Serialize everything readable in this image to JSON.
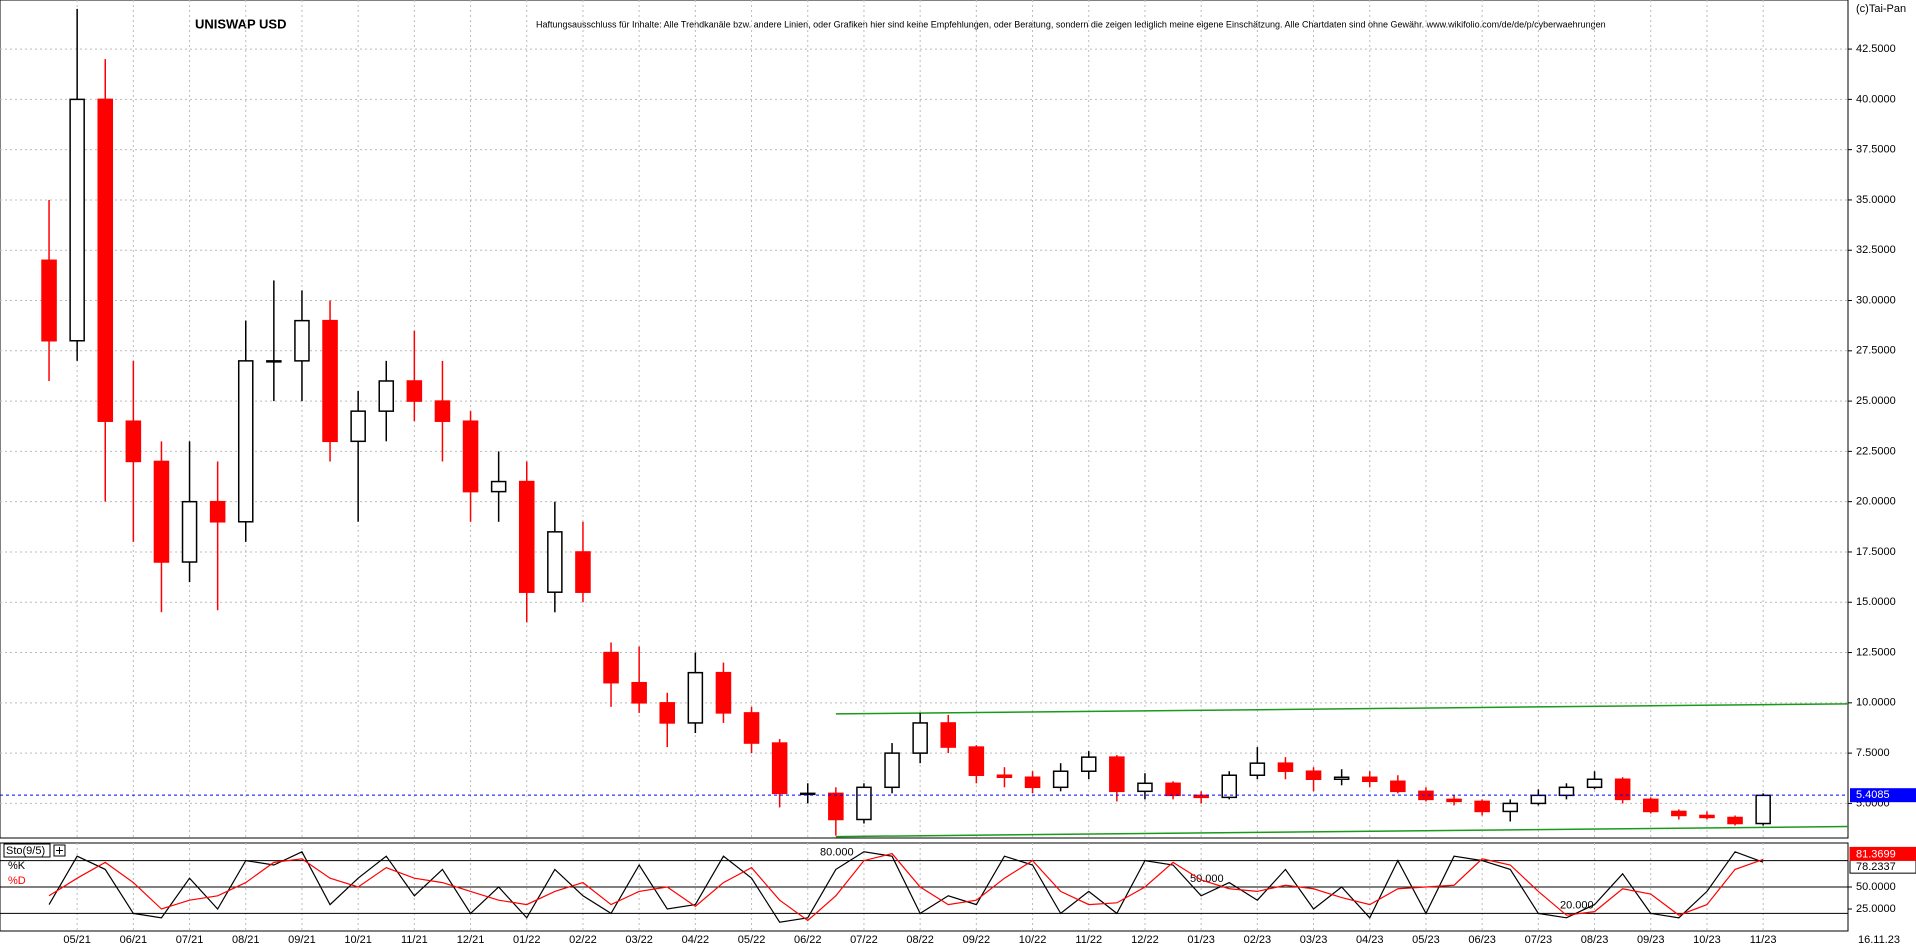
{
  "chart_data": [
    {
      "type": "candlestick",
      "title": "UNISWAP USD",
      "subtitle": "Haftungsausschluss für Inhalte: Alle Trendkanäle bzw. andere Linien, oder Grafiken hier sind keine Empfehlungen, oder Beratung, sondern die zeigen lediglich meine eigene Einschätzung. Alle Chartdaten sind ohne Gewähr.  www.wikifolio.com/de/de/p/cyberwaehrungen",
      "copyright": "(c)Tai-Pan",
      "date_label": "16.11.23",
      "categories": [
        null,
        "05/21",
        null,
        "06/21",
        null,
        "07/21",
        null,
        "08/21",
        null,
        "09/21",
        null,
        "10/21",
        null,
        "11/21",
        null,
        "12/21",
        null,
        "01/22",
        null,
        "02/22",
        null,
        "03/22",
        null,
        "04/22",
        null,
        "05/22",
        null,
        "06/22",
        null,
        "07/22",
        null,
        "08/22",
        null,
        "09/22",
        null,
        "10/22",
        null,
        "11/22",
        null,
        "12/22",
        null,
        "01/23",
        null,
        "02/23",
        null,
        "03/23",
        null,
        "04/23",
        null,
        "05/23",
        null,
        "06/23",
        null,
        "07/23",
        null,
        "08/23",
        null,
        "09/23",
        null,
        "10/23",
        null,
        "11/23"
      ],
      "open": [
        32,
        28,
        40,
        24,
        22,
        17,
        20,
        19,
        27,
        27,
        29,
        23,
        24.5,
        26,
        25,
        24,
        20.5,
        21,
        15.5,
        17.5,
        12.5,
        11,
        10,
        9,
        11.5,
        9.5,
        8,
        5.5,
        5.5,
        4.2,
        5.8,
        7.5,
        9,
        7.8,
        6.4,
        6.3,
        5.8,
        6.6,
        7.3,
        5.6,
        6,
        5.4,
        5.3,
        6.4,
        7,
        6.6,
        6.2,
        6.3,
        6.1,
        5.6,
        5.2,
        5.1,
        4.6,
        5,
        5.4,
        5.8,
        6.2,
        5.2,
        4.6,
        4.4,
        4.3,
        4
      ],
      "high": [
        35,
        44.5,
        42,
        27,
        23,
        23,
        22,
        29,
        31,
        30.5,
        30,
        25.5,
        27,
        28.5,
        27,
        24.5,
        22.5,
        22,
        20,
        19,
        13,
        12.8,
        10.5,
        12.5,
        12,
        9.8,
        8.2,
        6,
        5.8,
        6,
        8,
        9.5,
        9.4,
        7.9,
        6.8,
        6.6,
        7,
        7.6,
        7.4,
        6.5,
        6.1,
        5.6,
        6.6,
        7.8,
        7.3,
        6.8,
        6.7,
        6.6,
        6.4,
        5.8,
        5.4,
        5.2,
        5.2,
        5.7,
        6,
        6.6,
        6.3,
        5.3,
        4.7,
        4.6,
        4.4,
        5.5
      ],
      "low": [
        26,
        27,
        20,
        18,
        14.5,
        16,
        14.6,
        18,
        25,
        25,
        22,
        19,
        23,
        24,
        22,
        19,
        19,
        14,
        14.5,
        15,
        9.8,
        9.5,
        7.8,
        8.5,
        9,
        7.5,
        4.8,
        5,
        3.4,
        4,
        5.5,
        7,
        7.5,
        6,
        5.8,
        5.5,
        5.6,
        6.2,
        5.1,
        5.2,
        5.2,
        5,
        5.2,
        6.2,
        6.2,
        5.6,
        5.9,
        5.8,
        5.5,
        5.1,
        4.9,
        4.4,
        4.1,
        4.9,
        5.2,
        5.7,
        5,
        4.5,
        4.2,
        4.2,
        3.9,
        3.9
      ],
      "close": [
        28,
        40,
        24,
        22,
        17,
        20,
        19,
        27,
        27,
        29,
        23,
        24.5,
        26,
        25,
        24,
        20.5,
        21,
        15.5,
        18.5,
        15.5,
        11,
        10,
        9,
        11.5,
        9.5,
        8,
        5.5,
        5.5,
        4.2,
        5.8,
        7.5,
        9,
        7.8,
        6.4,
        6.3,
        5.8,
        6.6,
        7.3,
        5.6,
        6,
        5.4,
        5.3,
        6.4,
        7,
        6.6,
        6.2,
        6.3,
        6.1,
        5.6,
        5.2,
        5.1,
        4.6,
        5,
        5.4,
        5.8,
        6.2,
        5.2,
        4.6,
        4.4,
        4.3,
        4,
        5.4
      ],
      "up_color": "#000000",
      "down_color": "#ff0000",
      "ylim": [
        3.28,
        44.94
      ],
      "yticks": [
        {
          "value": 5,
          "label": "5.0000"
        },
        {
          "value": 7.5,
          "label": "7.5000"
        },
        {
          "value": 10,
          "label": "10.0000"
        },
        {
          "value": 12.5,
          "label": "12.5000"
        },
        {
          "value": 15,
          "label": "15.0000"
        },
        {
          "value": 17.5,
          "label": "17.5000"
        },
        {
          "value": 20,
          "label": "20.0000"
        },
        {
          "value": 22.5,
          "label": "22.5000"
        },
        {
          "value": 25,
          "label": "25.0000"
        },
        {
          "value": 27.5,
          "label": "27.5000"
        },
        {
          "value": 30,
          "label": "30.0000"
        },
        {
          "value": 32.5,
          "label": "32.5000"
        },
        {
          "value": 35,
          "label": "35.0000"
        },
        {
          "value": 37.5,
          "label": "37.5000"
        },
        {
          "value": 40,
          "label": "40.0000"
        },
        {
          "value": 42.5,
          "label": "42.5000"
        }
      ],
      "grid": true,
      "last_price": 5.4085,
      "last_price_color": "#0000ff",
      "trendlines": [
        {
          "color": "#1a9a1a",
          "values": [
            9.45,
            9.95
          ]
        },
        {
          "color": "#1a9a1a",
          "values": [
            3.35,
            3.85
          ]
        }
      ]
    },
    {
      "type": "line",
      "title": "Sto(9/5)",
      "categories": [
        null,
        "05/21",
        null,
        "06/21",
        null,
        "07/21",
        null,
        "08/21",
        null,
        "09/21",
        null,
        "10/21",
        null,
        "11/21",
        null,
        "12/21",
        null,
        "01/22",
        null,
        "02/22",
        null,
        "03/22",
        null,
        "04/22",
        null,
        "05/22",
        null,
        "06/22",
        null,
        "07/22",
        null,
        "08/22",
        null,
        "09/22",
        null,
        "10/22",
        null,
        "11/22",
        null,
        "12/22",
        null,
        "01/23",
        null,
        "02/23",
        null,
        "03/23",
        null,
        "04/23",
        null,
        "05/23",
        null,
        "06/23",
        null,
        "07/23",
        null,
        "08/23",
        null,
        "09/23",
        null,
        "10/23",
        null,
        "11/23"
      ],
      "series": [
        {
          "name": "%K",
          "color": "#000000",
          "values": [
            30,
            85,
            70,
            20,
            15,
            60,
            25,
            80,
            75,
            90,
            30,
            60,
            85,
            40,
            70,
            20,
            50,
            15,
            70,
            40,
            20,
            75,
            25,
            30,
            85,
            60,
            10,
            15,
            70,
            90,
            85,
            20,
            40,
            30,
            85,
            75,
            20,
            45,
            20,
            80,
            75,
            40,
            55,
            35,
            70,
            25,
            50,
            15,
            80,
            20,
            85,
            80,
            70,
            20,
            15,
            30,
            65,
            20,
            15,
            45,
            90,
            78.2337
          ]
        },
        {
          "name": "%D",
          "color": "#ff0000",
          "values": [
            40,
            60,
            78,
            55,
            25,
            35,
            40,
            55,
            78,
            82,
            60,
            50,
            72,
            60,
            55,
            45,
            35,
            30,
            45,
            55,
            30,
            45,
            50,
            28,
            55,
            72,
            35,
            12,
            40,
            80,
            88,
            50,
            30,
            35,
            60,
            80,
            45,
            30,
            32,
            50,
            78,
            58,
            48,
            45,
            52,
            48,
            38,
            30,
            48,
            50,
            52,
            82,
            75,
            45,
            18,
            22,
            48,
            42,
            18,
            30,
            70,
            81.3699
          ]
        }
      ],
      "ylim": [
        0,
        100
      ],
      "yticks": [
        {
          "value": 25,
          "label": "25.0000"
        },
        {
          "value": 50,
          "label": "50.0000"
        }
      ],
      "levels": [
        {
          "value": 80,
          "label": "80.000"
        },
        {
          "value": 50,
          "label": "50.000"
        },
        {
          "value": 20,
          "label": "20.000"
        }
      ]
    }
  ]
}
